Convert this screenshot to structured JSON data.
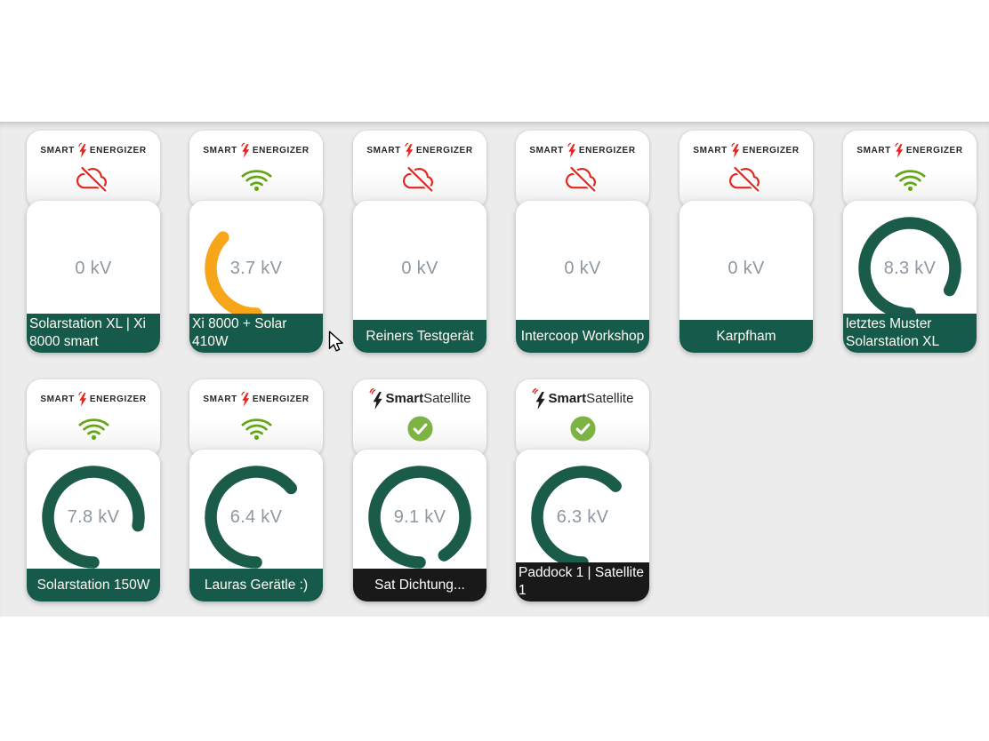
{
  "colors": {
    "canvas_bg": "#ececec",
    "green_bar": "#165a4c",
    "black_bar": "#191919",
    "gauge_green": "#1b5b49",
    "gauge_amber": "#f7a619",
    "alert_red": "#e2261f",
    "wifi_green": "#63a616",
    "check_green": "#7cb342",
    "value_gray": "#8d98a2",
    "label_text": "#fffdf2"
  },
  "gauge": {
    "max_kv": 10,
    "unit": "kV"
  },
  "brands": {
    "energizer": {
      "word1": "SMART",
      "word2": "ENERGIZER"
    },
    "satellite": {
      "word1": "Smart",
      "word2": "Satellite"
    }
  },
  "devices": [
    {
      "name": "Solarstation XL | Xi 8000 smart",
      "brand": "energizer",
      "connection": "offline",
      "value_kv": 0,
      "value_label": "0 kV",
      "gauge_color": "none",
      "bar": "green"
    },
    {
      "name": "Xi 8000 + Solar 410W",
      "brand": "energizer",
      "connection": "wifi",
      "value_kv": 3.7,
      "value_label": "3.7 kV",
      "gauge_color": "amber",
      "bar": "green"
    },
    {
      "name": "Reiners Testgerät",
      "brand": "energizer",
      "connection": "offline",
      "value_kv": 0,
      "value_label": "0 kV",
      "gauge_color": "none",
      "bar": "green"
    },
    {
      "name": "Intercoop Workshop",
      "brand": "energizer",
      "connection": "offline",
      "value_kv": 0,
      "value_label": "0 kV",
      "gauge_color": "none",
      "bar": "green"
    },
    {
      "name": "Karpfham",
      "brand": "energizer",
      "connection": "offline",
      "value_kv": 0,
      "value_label": "0 kV",
      "gauge_color": "none",
      "bar": "green"
    },
    {
      "name": "letztes Muster Solarstation XL",
      "brand": "energizer",
      "connection": "wifi",
      "value_kv": 8.3,
      "value_label": "8.3 kV",
      "gauge_color": "green",
      "bar": "green"
    },
    {
      "name": "Solarstation 150W",
      "brand": "energizer",
      "connection": "wifi",
      "value_kv": 7.8,
      "value_label": "7.8 kV",
      "gauge_color": "green",
      "bar": "green"
    },
    {
      "name": "Lauras Gerätle :)",
      "brand": "energizer",
      "connection": "wifi",
      "value_kv": 6.4,
      "value_label": "6.4 kV",
      "gauge_color": "green",
      "bar": "green"
    },
    {
      "name": "Sat Dichtung...",
      "brand": "satellite",
      "connection": "ok",
      "value_kv": 9.1,
      "value_label": "9.1 kV",
      "gauge_color": "green",
      "bar": "black"
    },
    {
      "name": "Paddock 1 | Satellite 1",
      "brand": "satellite",
      "connection": "ok",
      "value_kv": 6.3,
      "value_label": "6.3 kV",
      "gauge_color": "green",
      "bar": "black"
    }
  ]
}
